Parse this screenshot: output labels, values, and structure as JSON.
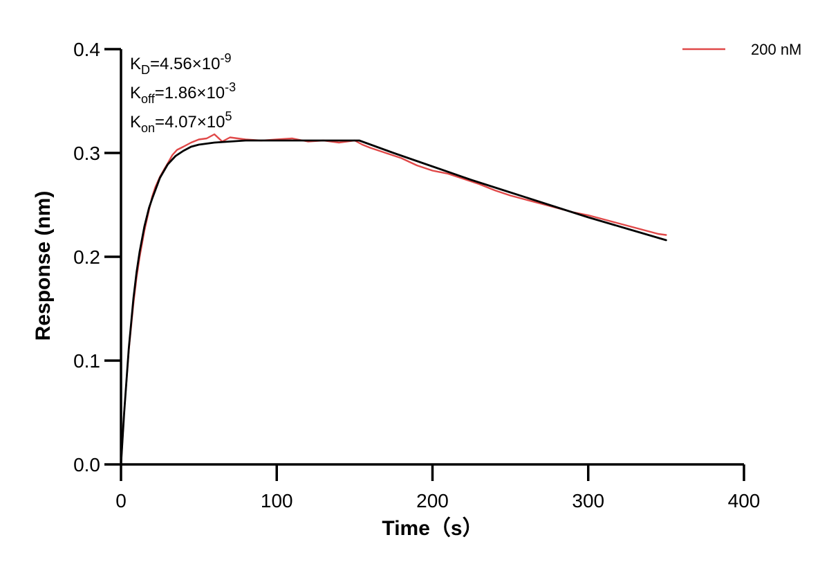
{
  "chart_data": {
    "type": "line",
    "title": "",
    "xlabel": "Time（s）",
    "ylabel": "Response (nm)",
    "xlim": [
      0,
      400
    ],
    "ylim": [
      0,
      0.4
    ],
    "xticks": [
      0,
      100,
      200,
      300,
      400
    ],
    "xtick_labels": [
      "0",
      "100",
      "200",
      "300",
      "400"
    ],
    "yticks": [
      0,
      0.1,
      0.2,
      0.3,
      0.4
    ],
    "ytick_labels": [
      "0.0",
      "0.1",
      "0.2",
      "0.3",
      "0.4"
    ],
    "grid": false,
    "legend_position": "top-right",
    "annotations": [
      {
        "base": "K",
        "sub": "D",
        "rest": "=4.56×10",
        "sup": "-9"
      },
      {
        "base": "K",
        "sub": "off",
        "rest": "=1.86×10",
        "sup": "-3"
      },
      {
        "base": "K",
        "sub": "on",
        "rest": "=4.07×10",
        "sup": "5"
      }
    ],
    "series": [
      {
        "name": "200 nM",
        "color": "#e04848",
        "role": "measured",
        "x": [
          0,
          2,
          5,
          8,
          10,
          12,
          15,
          18,
          20,
          22,
          25,
          28,
          30,
          33,
          36,
          40,
          45,
          50,
          55,
          60,
          65,
          70,
          80,
          90,
          100,
          110,
          120,
          130,
          140,
          150,
          155,
          160,
          170,
          180,
          190,
          200,
          210,
          220,
          230,
          240,
          250,
          260,
          270,
          280,
          290,
          300,
          310,
          320,
          330,
          340,
          345,
          350
        ],
        "y": [
          0.0,
          0.05,
          0.11,
          0.155,
          0.18,
          0.2,
          0.225,
          0.245,
          0.258,
          0.267,
          0.277,
          0.285,
          0.29,
          0.298,
          0.303,
          0.306,
          0.31,
          0.313,
          0.314,
          0.318,
          0.311,
          0.315,
          0.313,
          0.312,
          0.313,
          0.314,
          0.311,
          0.312,
          0.31,
          0.312,
          0.308,
          0.305,
          0.3,
          0.295,
          0.288,
          0.283,
          0.28,
          0.275,
          0.27,
          0.264,
          0.259,
          0.255,
          0.251,
          0.247,
          0.243,
          0.24,
          0.236,
          0.232,
          0.228,
          0.224,
          0.222,
          0.221
        ]
      },
      {
        "name": "",
        "color": "#000000",
        "role": "fit",
        "x": [
          0,
          2,
          5,
          8,
          10,
          12,
          15,
          18,
          20,
          25,
          30,
          35,
          40,
          45,
          50,
          60,
          70,
          80,
          100,
          120,
          140,
          150,
          153,
          175,
          200,
          225,
          250,
          275,
          300,
          325,
          350
        ],
        "y": [
          0.0,
          0.049,
          0.112,
          0.16,
          0.185,
          0.205,
          0.229,
          0.247,
          0.256,
          0.276,
          0.289,
          0.297,
          0.302,
          0.306,
          0.308,
          0.31,
          0.311,
          0.312,
          0.312,
          0.312,
          0.312,
          0.312,
          0.312,
          0.3,
          0.287,
          0.274,
          0.262,
          0.25,
          0.238,
          0.227,
          0.216
        ]
      }
    ]
  }
}
